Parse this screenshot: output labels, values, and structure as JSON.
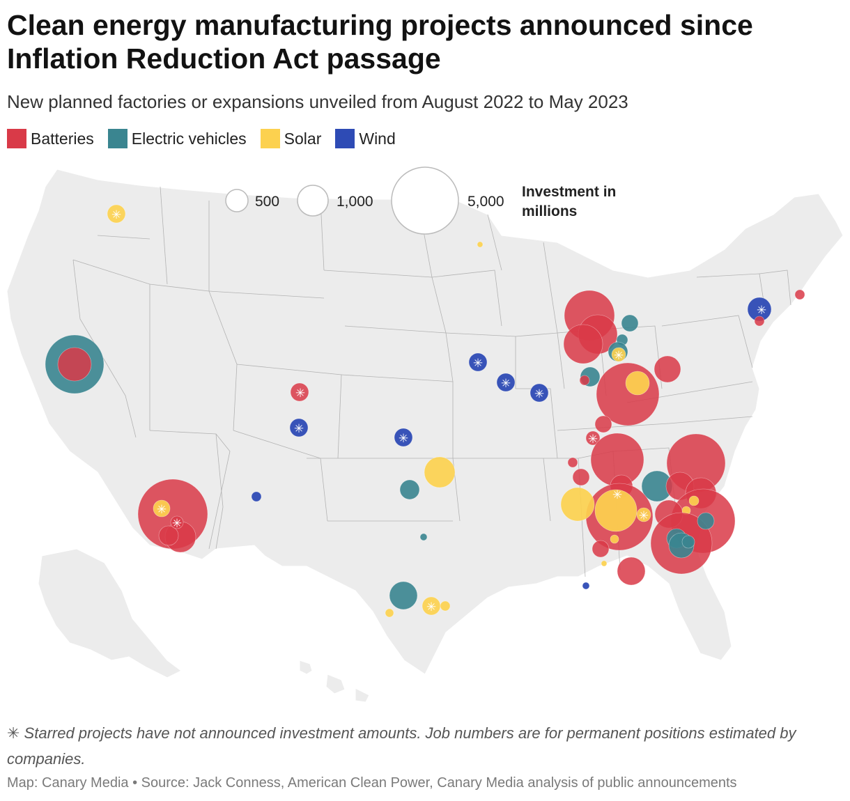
{
  "title": "Clean energy manufacturing projects announced since Inflation Reduction Act passage",
  "subtitle": "New planned factories or expansions unveiled from August 2022 to May 2023",
  "legend": [
    {
      "label": "Batteries",
      "color": "#d93a48"
    },
    {
      "label": "Electric vehicles",
      "color": "#3a8590"
    },
    {
      "label": "Solar",
      "color": "#fcd14f"
    },
    {
      "label": "Wind",
      "color": "#2e4bb5"
    }
  ],
  "size_legend": {
    "title_line1": "Investment in",
    "title_line2": "millions",
    "items": [
      {
        "label": "500",
        "value": 500
      },
      {
        "label": "1,000",
        "value": 1000
      },
      {
        "label": "5,000",
        "value": 5000
      }
    ]
  },
  "footnote": "✳ Starred projects have not announced investment amounts. Job numbers are for permanent positions estimated by companies.",
  "source": "Map: Canary Media • Source: Jack Conness, American Clean Power, Canary Media analysis of public announcements",
  "colors": {
    "land": "#ececec",
    "border": "#ffffff",
    "state_line": "#9a9a9a",
    "star": "#ffffff"
  },
  "icons": {
    "unannounced_marker": "asterisk-icon"
  }
}
